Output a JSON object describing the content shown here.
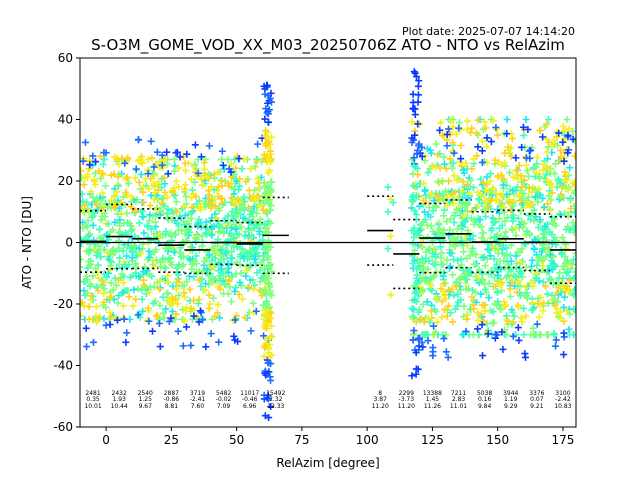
{
  "plot_date": "Plot date: 2025-07-07 14:14:20",
  "chart_data": {
    "type": "scatter",
    "title": "S-O3M_GOME_VOD_XX_M03_20250706Z ATO - NTO vs RelAzim",
    "xlabel": "RelAzim [degree]",
    "ylabel": "ATO - NTO [DU]",
    "xlim": [
      -10,
      180
    ],
    "ylim": [
      -60,
      60
    ],
    "xticks": [
      0,
      25,
      50,
      75,
      100,
      125,
      150,
      175
    ],
    "yticks": [
      -60,
      -40,
      -20,
      0,
      20,
      40,
      60
    ],
    "grid": false,
    "colors": {
      "cloud_main": "#7dff7a",
      "cloud_cyan": "#1ee6f0",
      "cloud_aqua": "#3dffc0",
      "high_yellow": "#f2f01a",
      "high_gold": "#ffd21a",
      "extreme_blue": "#0a3cff",
      "extreme_blue2": "#1e6cff",
      "zero_line": "#000000",
      "mean_line": "#000000"
    },
    "point_regions": [
      {
        "xmin": -10,
        "xmax": 63,
        "ymin": -25,
        "ymax": 27
      },
      {
        "xmin": 117,
        "xmax": 180,
        "ymin": -30,
        "ymax": 40
      }
    ],
    "bins": [
      {
        "x_center": -5,
        "count": "2481",
        "mean": "0.35",
        "std": "10.01"
      },
      {
        "x_center": 5,
        "count": "2432",
        "mean": "1.93",
        "std": "10.44"
      },
      {
        "x_center": 15,
        "count": "2540",
        "mean": "1.25",
        "std": "9.67"
      },
      {
        "x_center": 25,
        "count": "2887",
        "mean": "-0.86",
        "std": "8.81"
      },
      {
        "x_center": 35,
        "count": "3719",
        "mean": "-2.41",
        "std": "7.60"
      },
      {
        "x_center": 45,
        "count": "5482",
        "mean": "-0.02",
        "std": "7.09"
      },
      {
        "x_center": 55,
        "count": "11017",
        "mean": "-0.46",
        "std": "6.96"
      },
      {
        "x_center": 65,
        "count": "15492",
        "mean": "2.32",
        "std": "12.33"
      },
      {
        "x_center": 105,
        "count": "8",
        "mean": "3.87",
        "std": "11.20"
      },
      {
        "x_center": 115,
        "count": "2299",
        "mean": "-3.73",
        "std": "11.20"
      },
      {
        "x_center": 125,
        "count": "13388",
        "mean": "1.45",
        "std": "11.26"
      },
      {
        "x_center": 135,
        "count": "7211",
        "mean": "2.83",
        "std": "11.01"
      },
      {
        "x_center": 145,
        "count": "5038",
        "mean": "0.16",
        "std": "9.84"
      },
      {
        "x_center": 155,
        "count": "3944",
        "mean": "1.19",
        "std": "9.29"
      },
      {
        "x_center": 165,
        "count": "3376",
        "mean": "0.07",
        "std": "9.21"
      },
      {
        "x_center": 175,
        "count": "3100",
        "mean": "-2.42",
        "std": "10.83"
      }
    ]
  }
}
